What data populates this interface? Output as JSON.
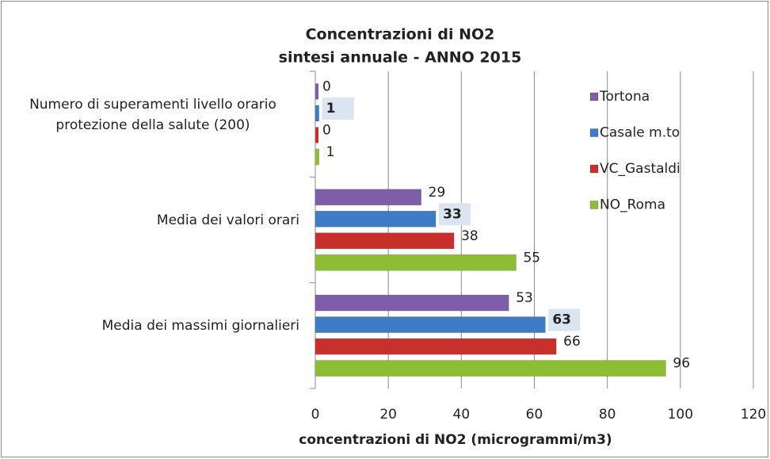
{
  "chart_data": {
    "type": "bar",
    "orientation": "horizontal",
    "title": "Concentrazioni di NO2",
    "subtitle": "sintesi annuale - ANNO 2015",
    "x_label": "concentrazioni di NO2 (microgrammi/m3)",
    "categories": [
      "Numero di superamenti livello orario protezione della salute (200)",
      "Media dei valori orari",
      "Media dei massimi giornalieri"
    ],
    "series": [
      {
        "name": "Tortona",
        "color": "#7e5ea8",
        "values": [
          0,
          29,
          53
        ]
      },
      {
        "name": "Casale m.to",
        "color": "#3e7cc6",
        "values": [
          1,
          33,
          63
        ]
      },
      {
        "name": "VC_Gastaldi",
        "color": "#c9302c",
        "values": [
          0,
          38,
          66
        ]
      },
      {
        "name": "NO_Roma",
        "color": "#8dbd35",
        "values": [
          1,
          55,
          96
        ]
      }
    ],
    "highlighted_series": "Casale m.to",
    "xlim": [
      0,
      120
    ],
    "xticks": [
      0,
      20,
      40,
      60,
      80,
      100,
      120
    ],
    "grid": true,
    "legend": "upper right"
  }
}
